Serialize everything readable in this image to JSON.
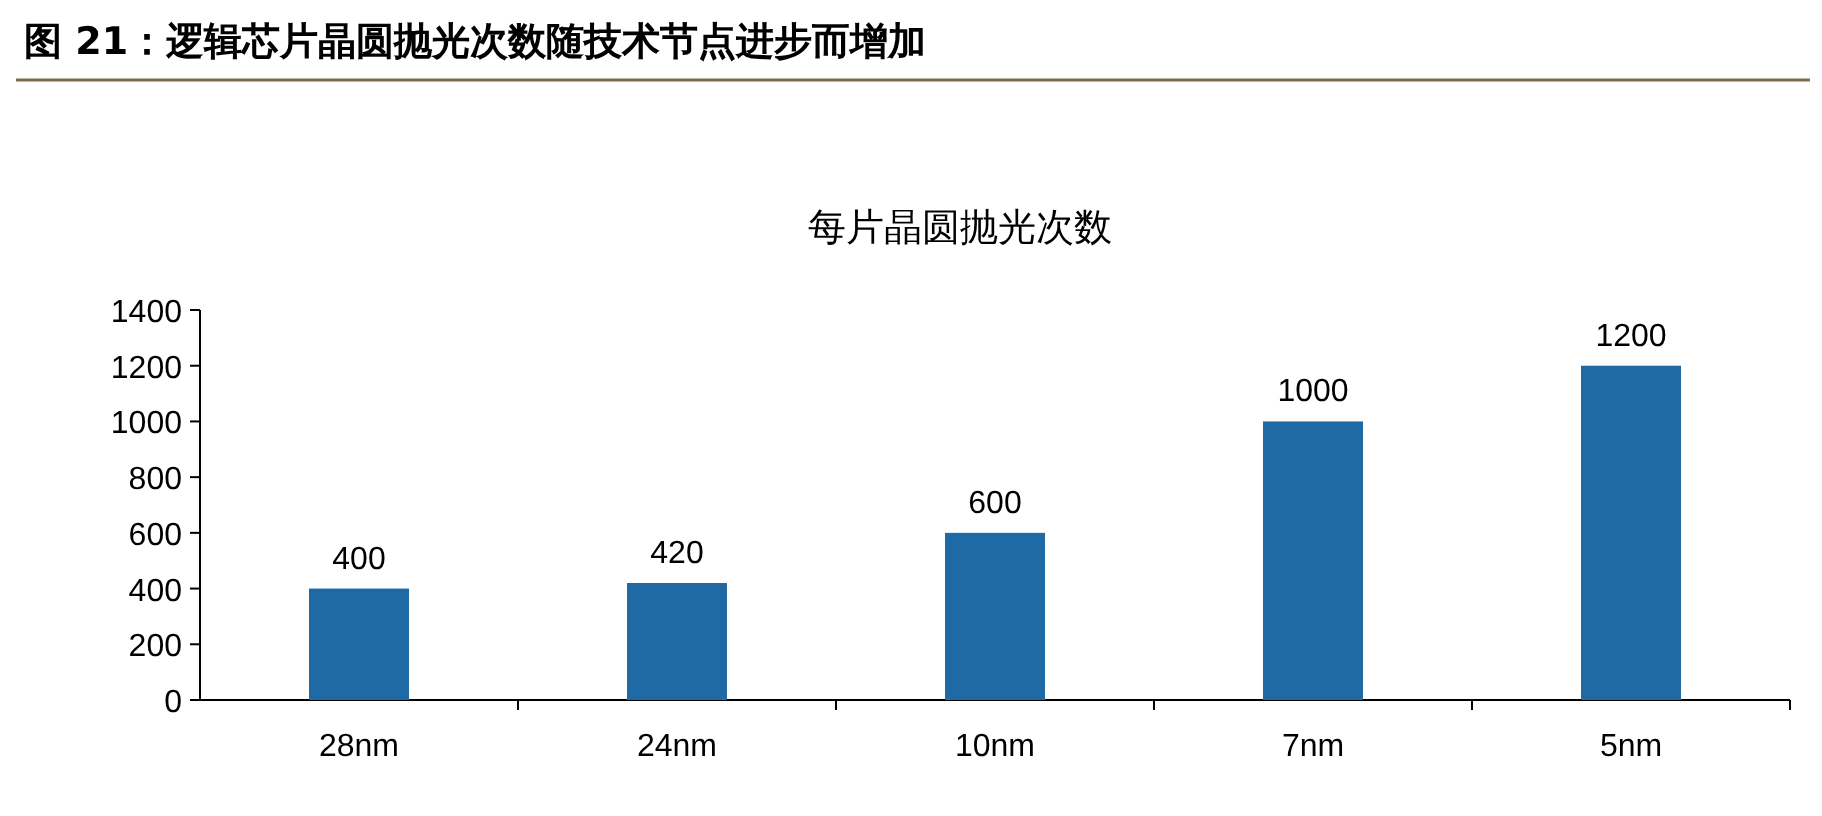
{
  "chart_data": {
    "type": "bar",
    "title": "图 21：逻辑芯片晶圆抛光次数随技术节点进步而增加",
    "subtitle": "每片晶圆抛光次数",
    "categories": [
      "28nm",
      "24nm",
      "10nm",
      "7nm",
      "5nm"
    ],
    "values": [
      400,
      420,
      600,
      1000,
      1200
    ],
    "color": "#1f6aa5",
    "ylim": [
      0,
      1400
    ],
    "yticks": [
      0,
      200,
      400,
      600,
      800,
      1000,
      1200,
      1400
    ],
    "data_labels": true
  }
}
